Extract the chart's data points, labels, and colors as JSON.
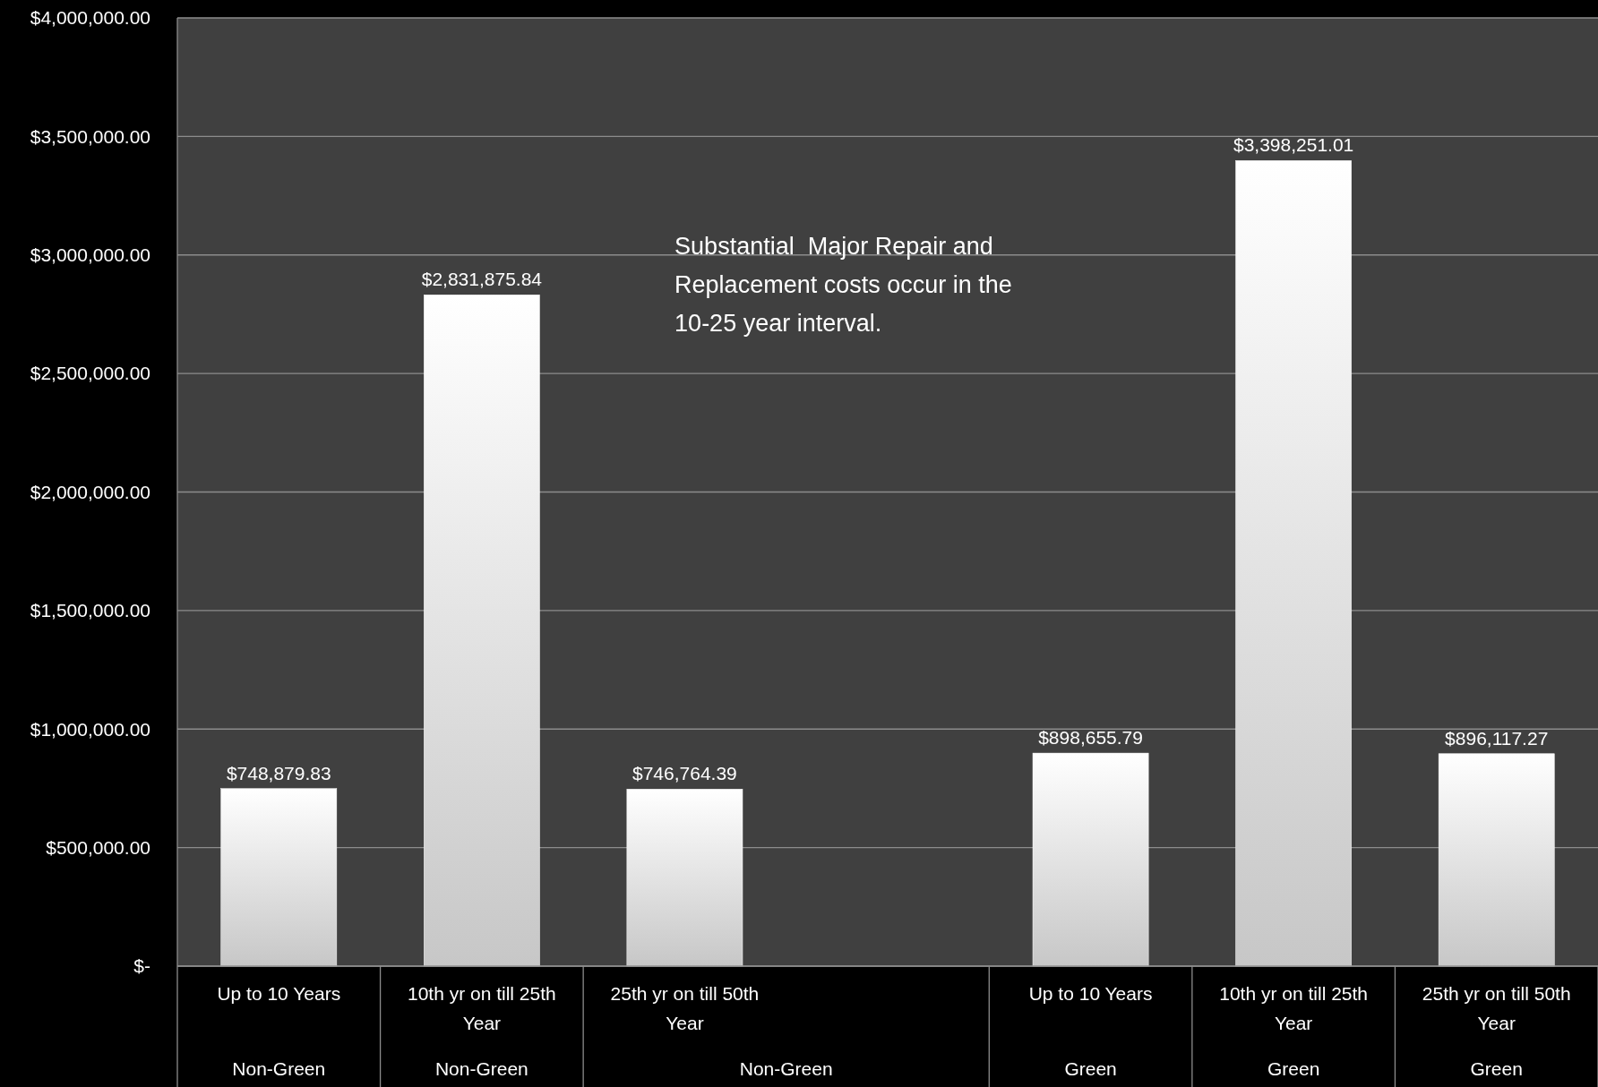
{
  "chart_data": {
    "type": "bar",
    "categories": [
      "Up to 10 Years\n\nNon-Green",
      "10th yr on till  25th\nYear\nNon-Green",
      "25th yr on till 50th\nYear\nNon-Green",
      null,
      "Up to 10 Years\n\nGreen",
      "10th yr on till  25th\nYear\nGreen",
      "25th yr on till 50th\nYear\nGreen"
    ],
    "values": [
      748879.83,
      2831875.84,
      746764.39,
      null,
      898655.79,
      3398251.01,
      896117.27
    ],
    "value_labels": [
      "$748,879.83",
      "$2,831,875.84",
      "$746,764.39",
      null,
      "$898,655.79",
      "$3,398,251.01",
      "$896,117.27"
    ],
    "color": "#ffffff",
    "ylim": [
      0,
      4000000
    ],
    "yticks": [
      {
        "value": 0,
        "label": "$-"
      },
      {
        "value": 500000,
        "label": "$500,000.00"
      },
      {
        "value": 1000000,
        "label": "$1,000,000.00"
      },
      {
        "value": 1500000,
        "label": "$1,500,000.00"
      },
      {
        "value": 2000000,
        "label": "$2,000,000.00"
      },
      {
        "value": 2500000,
        "label": "$2,500,000.00"
      },
      {
        "value": 3000000,
        "label": "$3,000,000.00"
      },
      {
        "value": 3500000,
        "label": "$3,500,000.00"
      },
      {
        "value": 4000000,
        "label": "$4,000,000.00"
      }
    ],
    "grid": true,
    "annotations": [
      "Substantial  Major Repair and Replacement costs occur in the 10-25 year interval."
    ]
  }
}
